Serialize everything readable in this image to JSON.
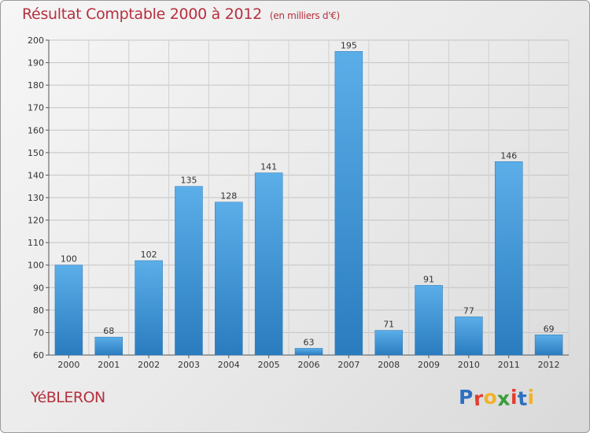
{
  "title": "Résultat Comptable 2000 à 2012",
  "subtitle": "(en milliers d'€)",
  "town": "YéBLERON",
  "logo": {
    "letters": [
      "P",
      "r",
      "o",
      "x",
      "i",
      "t",
      "i"
    ],
    "colors": [
      "#2f6fc1",
      "#e33d2f",
      "#f2b227",
      "#3a9d3a",
      "#e33d2f",
      "#2f6fc1",
      "#f2b227"
    ]
  },
  "colors": {
    "bar_light": "#5baee8",
    "bar_dark": "#2a7cbf",
    "accent": "#b5303e"
  },
  "chart_data": {
    "type": "bar",
    "title": "Résultat Comptable 2000 à 2012",
    "subtitle": "(en milliers d'€)",
    "categories": [
      "2000",
      "2001",
      "2002",
      "2003",
      "2004",
      "2005",
      "2006",
      "2007",
      "2008",
      "2009",
      "2010",
      "2011",
      "2012"
    ],
    "values": [
      100,
      68,
      102,
      135,
      128,
      141,
      63,
      195,
      71,
      91,
      77,
      146,
      69
    ],
    "ylim": [
      60,
      200
    ],
    "yticks": [
      60,
      70,
      80,
      90,
      100,
      110,
      120,
      130,
      140,
      150,
      160,
      170,
      180,
      190,
      200
    ],
    "xlabel": "",
    "ylabel": "",
    "grid": true
  }
}
